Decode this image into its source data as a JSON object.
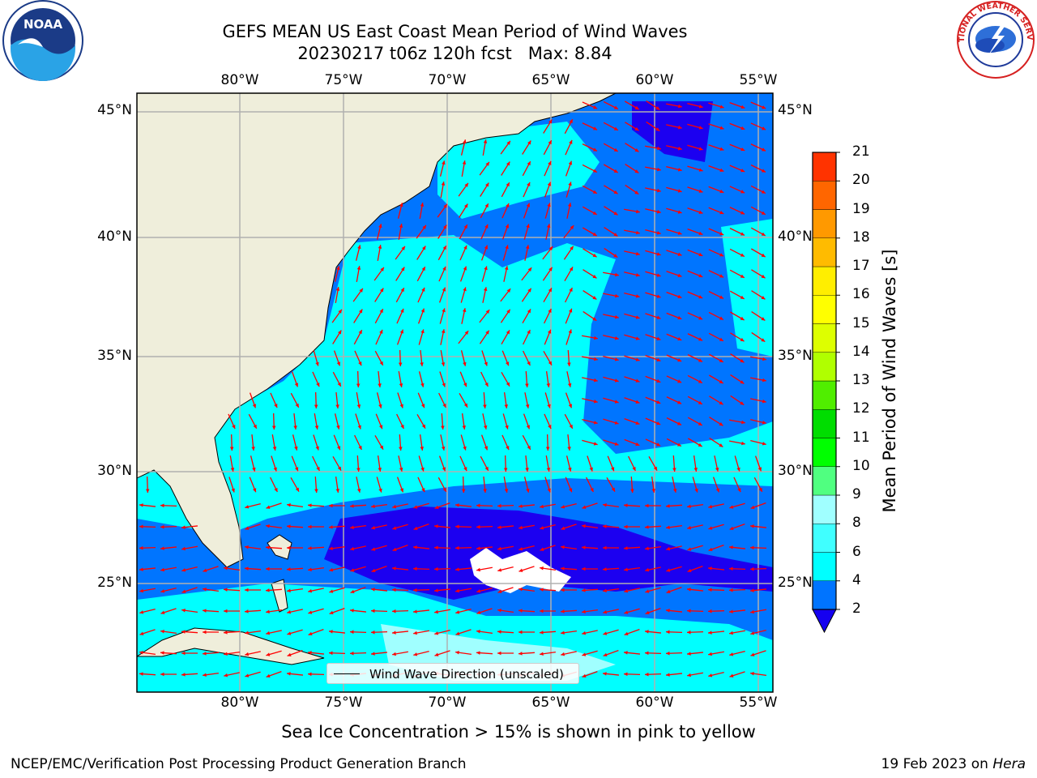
{
  "title": {
    "line1": "GEFS MEAN US East Coast Mean Period of Wind Waves",
    "line2": "20230217 t06z 120h fcst   Max: 8.84"
  },
  "map": {
    "lon_ticks": [
      "80°W",
      "75°W",
      "70°W",
      "65°W",
      "60°W",
      "55°W"
    ],
    "lat_ticks": [
      "45°N",
      "40°N",
      "35°N",
      "30°N",
      "25°N"
    ],
    "legend_label": "Wind Wave Direction (unscaled)",
    "colors": {
      "land": "#efeedb",
      "ocean_2_4": "#0075ff",
      "ocean_lt2": "#1c00f0",
      "ocean_4_6": "#00ffff",
      "ocean_6_8": "#a0ffff",
      "arrow": "#ff0000"
    }
  },
  "colorbar": {
    "label": "Mean Period of Wind Waves [s]",
    "ticks": [
      "2",
      "4",
      "6",
      "8",
      "9",
      "10",
      "11",
      "12",
      "13",
      "14",
      "15",
      "16",
      "17",
      "18",
      "19",
      "20",
      "21"
    ],
    "colors": [
      "#0074ff",
      "#00ffff",
      "#40ffff",
      "#a0ffff",
      "#50ff80",
      "#00ff00",
      "#00dd00",
      "#50ee00",
      "#b0ff00",
      "#ddff00",
      "#ffff00",
      "#ffee00",
      "#ffbb00",
      "#ff9900",
      "#ff6600",
      "#ff3300",
      "#ff0000"
    ],
    "under_color": "#1500f0"
  },
  "note": "Sea Ice Concentration > 15% is shown in pink to yellow",
  "footer": {
    "left": "NCEP/EMC/Verification Post Processing Product Generation Branch",
    "right_date": "19 Feb 2023 on ",
    "right_machine": "Hera"
  },
  "logos": {
    "noaa_text": "NOAA",
    "nws_text": "NATIONAL WEATHER SERVICE"
  }
}
